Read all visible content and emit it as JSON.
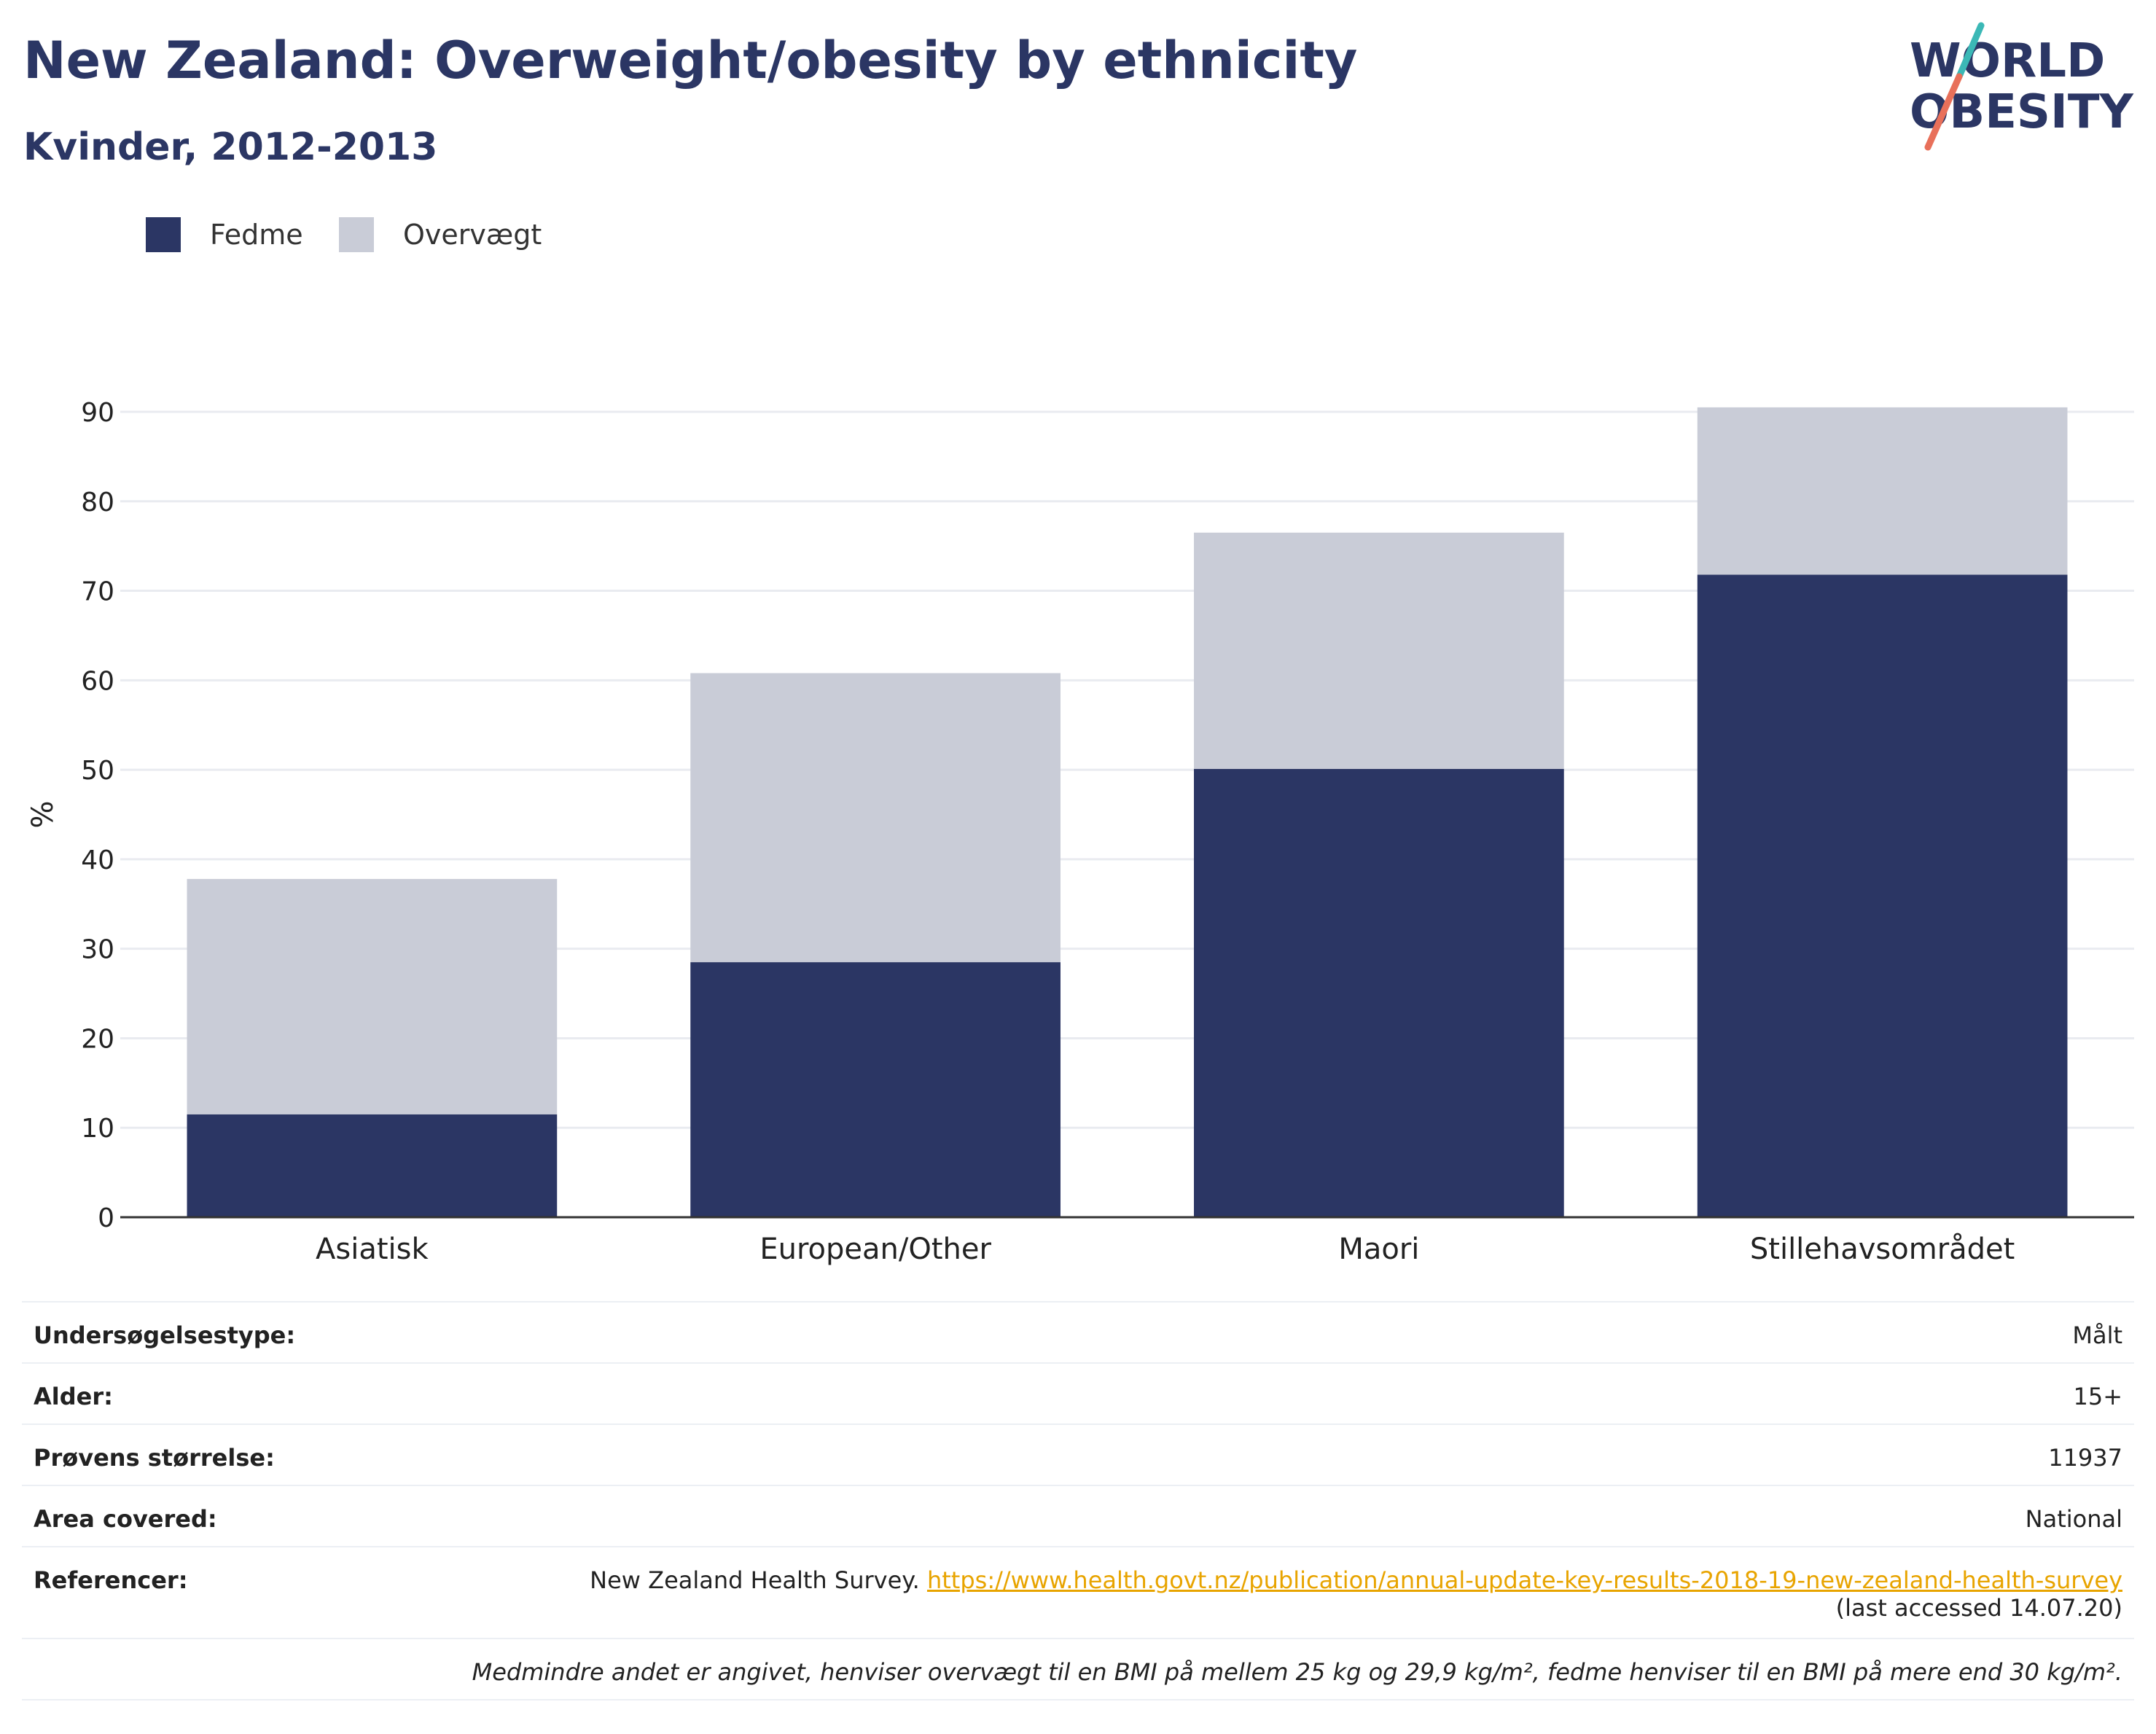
{
  "header": {
    "title": "New Zealand: Overweight/obesity by ethnicity",
    "subtitle": "Kvinder, 2012-2013",
    "logo_line1": "WORLD",
    "logo_line2": "OBESITY"
  },
  "legend": [
    {
      "label": "Fedme",
      "color": "#2b3664"
    },
    {
      "label": "Overvægt",
      "color": "#c9ccd7"
    }
  ],
  "chart_data": {
    "type": "bar",
    "stacked": true,
    "categories": [
      "Asiatisk",
      "European/Other",
      "Maori",
      "Stillehavsområdet"
    ],
    "series": [
      {
        "name": "Fedme",
        "values": [
          11.5,
          28.5,
          50.1,
          71.8
        ],
        "color": "#2b3664"
      },
      {
        "name": "Overvægt",
        "values": [
          26.3,
          32.3,
          26.4,
          18.7
        ],
        "color": "#c9ccd7"
      }
    ],
    "ylabel": "%",
    "ylim": [
      0,
      90
    ],
    "yticks": [
      0,
      10,
      20,
      30,
      40,
      50,
      60,
      70,
      80,
      90
    ],
    "grid": true,
    "legend_position": "top-left"
  },
  "meta": {
    "survey_type": {
      "label": "Undersøgelsestype:",
      "value": "Målt"
    },
    "age": {
      "label": "Alder:",
      "value": "15+"
    },
    "sample_size": {
      "label": "Prøvens størrelse:",
      "value": "11937"
    },
    "area": {
      "label": "Area covered:",
      "value": "National"
    },
    "references": {
      "label": "Referencer:",
      "source": "New Zealand Health Survey.",
      "url": "https://www.health.govt.nz/publication/annual-update-key-results-2018-19-new-zealand-health-survey",
      "accessed": "(last accessed 14.07.20)"
    },
    "note": "Medmindre andet er angivet, henviser overvægt til en BMI på mellem 25 kg og 29,9 kg/m², fedme henviser til en BMI på mere end 30 kg/m²."
  }
}
